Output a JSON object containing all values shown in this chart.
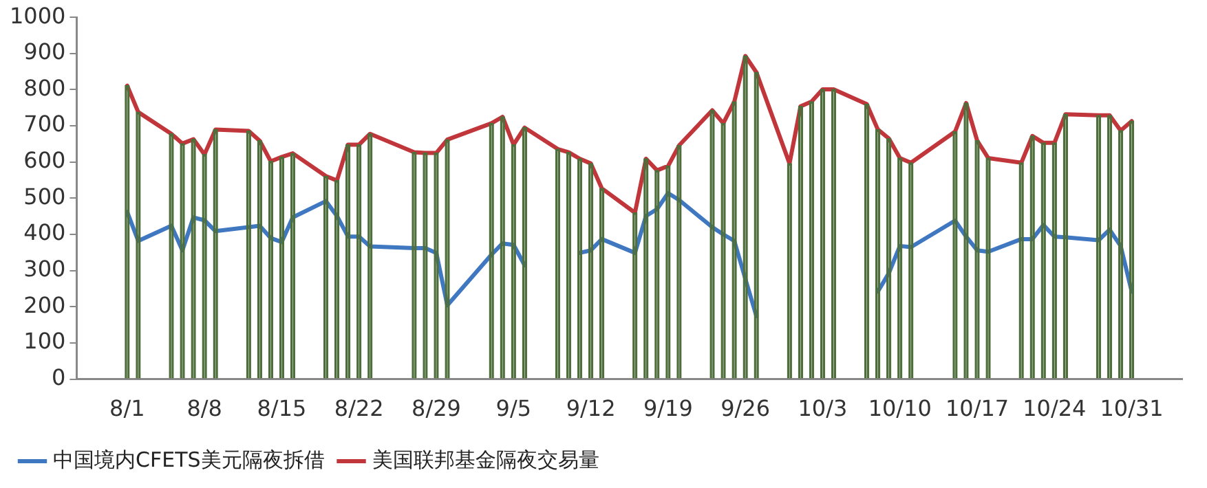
{
  "chart_data": {
    "type": "line",
    "x": [
      "--08-01",
      "--08-02",
      "--08-05",
      "--08-06",
      "--08-07",
      "--08-08",
      "--08-09",
      "--08-12",
      "--08-13",
      "--08-14",
      "--08-15",
      "--08-16",
      "--08-19",
      "--08-20",
      "--08-21",
      "--08-22",
      "--08-23",
      "--08-27",
      "--08-28",
      "--08-29",
      "--08-30",
      "--09-03",
      "--09-04",
      "--09-05",
      "--09-06",
      "--09-09",
      "--09-10",
      "--09-11",
      "--09-12",
      "--09-13",
      "--09-16",
      "--09-17",
      "--09-18",
      "--09-19",
      "--09-20",
      "--09-23",
      "--09-24",
      "--09-25",
      "--09-26",
      "--09-27",
      "--09-30",
      "--10-01",
      "--10-02",
      "--10-03",
      "--10-04",
      "--10-07",
      "--10-08",
      "--10-09",
      "--10-10",
      "--10-11",
      "--10-15",
      "--10-16",
      "--10-17",
      "--10-18",
      "--10-21",
      "--10-22",
      "--10-23",
      "--10-24",
      "--10-25",
      "--10-28",
      "--10-29",
      "--10-30",
      "--10-31"
    ],
    "series": [
      {
        "type": "bar",
        "color": "#4e6e3c",
        "values": [
          811,
          738,
          678,
          651,
          663,
          621,
          690,
          686,
          659,
          602,
          614,
          624,
          561,
          549,
          648,
          648,
          678,
          627,
          625,
          625,
          662,
          707,
          725,
          648,
          695,
          636,
          627,
          609,
          596,
          527,
          460,
          609,
          577,
          589,
          646,
          743,
          707,
          767,
          893,
          848,
          596,
          754,
          767,
          801,
          801,
          760,
          690,
          665,
          611,
          598,
          684,
          763,
          659,
          611,
          598,
          672,
          653,
          653,
          732,
          729,
          729,
          687,
          713
        ]
      },
      {
        "name": "中国境内CFETS美元隔夜拆借",
        "color": "#3f78c0",
        "values": [
          462,
          382,
          424,
          356,
          447,
          439,
          409,
          420,
          424,
          390,
          379,
          447,
          492,
          451,
          394,
          394,
          367,
          362,
          362,
          349,
          204,
          344,
          375,
          371,
          315,
          null,
          null,
          349,
          356,
          387,
          349,
          451,
          470,
          514,
          495,
          420,
          400,
          382,
          277,
          174,
          null,
          null,
          null,
          null,
          null,
          null,
          242,
          293,
          368,
          365,
          438,
          394,
          356,
          352,
          387,
          387,
          426,
          394,
          392,
          384,
          413,
          368,
          242
        ]
      },
      {
        "name": "美国联邦基金隔夜交易量",
        "color": "#c0363a",
        "values": [
          811,
          738,
          678,
          651,
          663,
          621,
          690,
          686,
          659,
          602,
          614,
          624,
          561,
          549,
          648,
          648,
          678,
          627,
          625,
          625,
          662,
          707,
          725,
          648,
          695,
          636,
          627,
          609,
          596,
          527,
          460,
          609,
          577,
          589,
          646,
          743,
          707,
          767,
          893,
          848,
          596,
          754,
          767,
          801,
          801,
          760,
          690,
          665,
          611,
          598,
          684,
          763,
          659,
          611,
          598,
          672,
          653,
          653,
          732,
          729,
          729,
          687,
          713
        ]
      }
    ],
    "xlim": [
      "--07-31",
      "--11-01"
    ],
    "xticks": [
      {
        "value": "--08-01",
        "label": "8/1"
      },
      {
        "value": "--08-08",
        "label": "8/8"
      },
      {
        "value": "--08-15",
        "label": "8/15"
      },
      {
        "value": "--08-22",
        "label": "8/22"
      },
      {
        "value": "--08-29",
        "label": "8/29"
      },
      {
        "value": "--09-05",
        "label": "9/5"
      },
      {
        "value": "--09-12",
        "label": "9/12"
      },
      {
        "value": "--09-19",
        "label": "9/19"
      },
      {
        "value": "--09-26",
        "label": "9/26"
      },
      {
        "value": "--10-03",
        "label": "10/3"
      },
      {
        "value": "--10-10",
        "label": "10/10"
      },
      {
        "value": "--10-17",
        "label": "10/17"
      },
      {
        "value": "--10-24",
        "label": "10/24"
      },
      {
        "value": "--10-31",
        "label": "10/31"
      }
    ],
    "ylim": [
      0,
      1000
    ],
    "yticks": [
      0,
      100,
      200,
      300,
      400,
      500,
      600,
      700,
      800,
      900,
      1000
    ],
    "grid": false,
    "legend": "bottom",
    "marker": "none",
    "line_style": "solid"
  }
}
